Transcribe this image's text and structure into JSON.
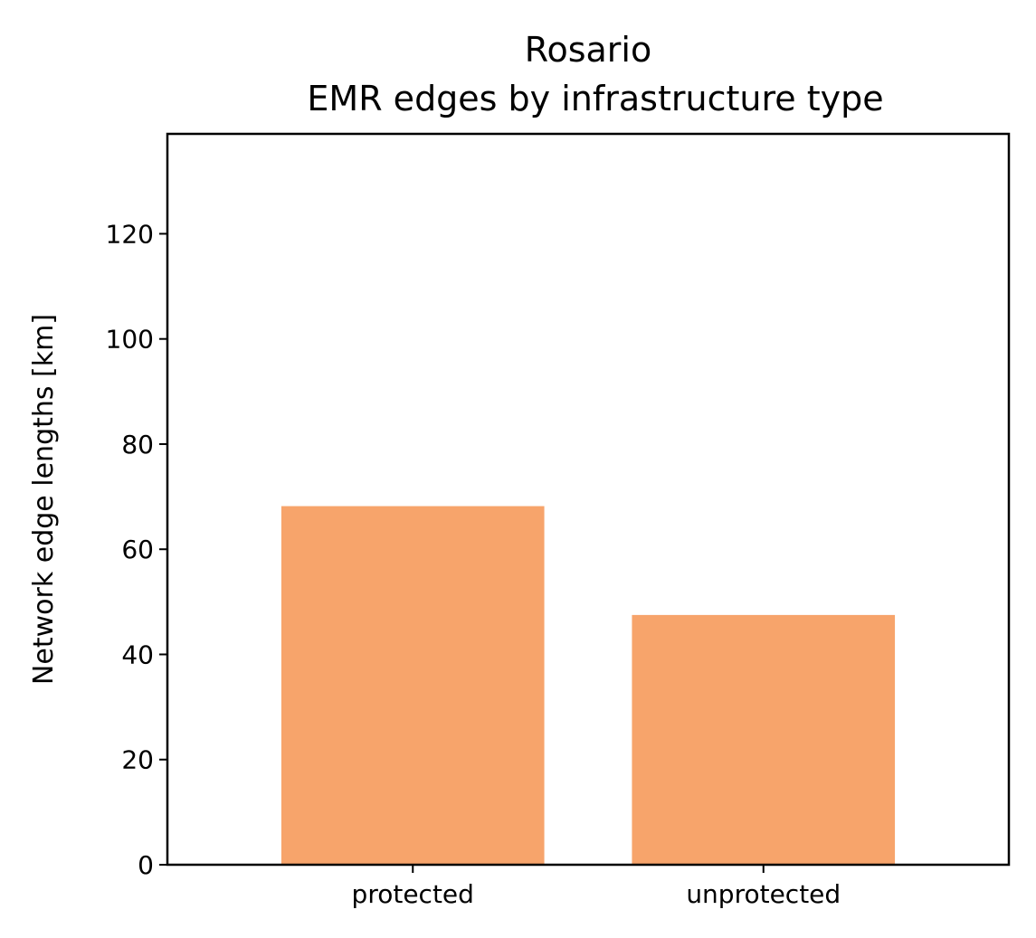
{
  "chart_data": {
    "type": "bar",
    "title_line1": "Rosario",
    "title_line2": "EMR edges by infrastructure type",
    "xlabel": "",
    "ylabel": "Network edge lengths [km]",
    "categories": [
      "protected",
      "unprotected"
    ],
    "values": [
      68.2,
      47.5
    ],
    "ylim": [
      0,
      139
    ],
    "yticks": [
      0,
      20,
      40,
      60,
      80,
      100,
      120
    ],
    "bar_color": "#f7a46b",
    "grid": false,
    "legend": "none"
  }
}
